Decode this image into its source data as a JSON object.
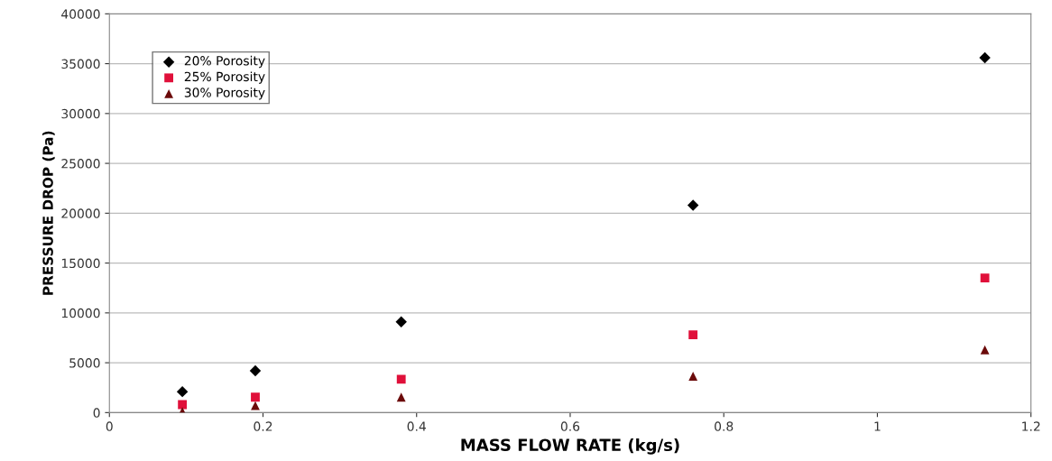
{
  "chart_data": {
    "type": "scatter",
    "xlabel": "MASS FLOW RATE (kg/s)",
    "ylabel": "PRESSURE DROP (Pa)",
    "x": [
      0.095,
      0.19,
      0.38,
      0.76,
      1.14
    ],
    "series": [
      {
        "name": "20% Porosity",
        "color": "#000000",
        "marker": "diamond",
        "values": [
          2100,
          4200,
          9100,
          20800,
          35600
        ]
      },
      {
        "name": "25% Porosity",
        "color": "#e0103a",
        "marker": "square",
        "values": [
          800,
          1550,
          3350,
          7800,
          13500
        ]
      },
      {
        "name": "30% Porosity",
        "color": "#6b0a0a",
        "marker": "triangle",
        "values": [
          100,
          700,
          1550,
          3650,
          6300
        ]
      }
    ],
    "xlim": [
      0,
      1.2
    ],
    "xticks": [
      0,
      0.2,
      0.4,
      0.6,
      0.8,
      1,
      1.2
    ],
    "ylim": [
      0,
      40000
    ],
    "yticks": [
      0,
      5000,
      10000,
      15000,
      20000,
      25000,
      30000,
      35000,
      40000
    ],
    "grid": "y",
    "legend": "top left"
  }
}
